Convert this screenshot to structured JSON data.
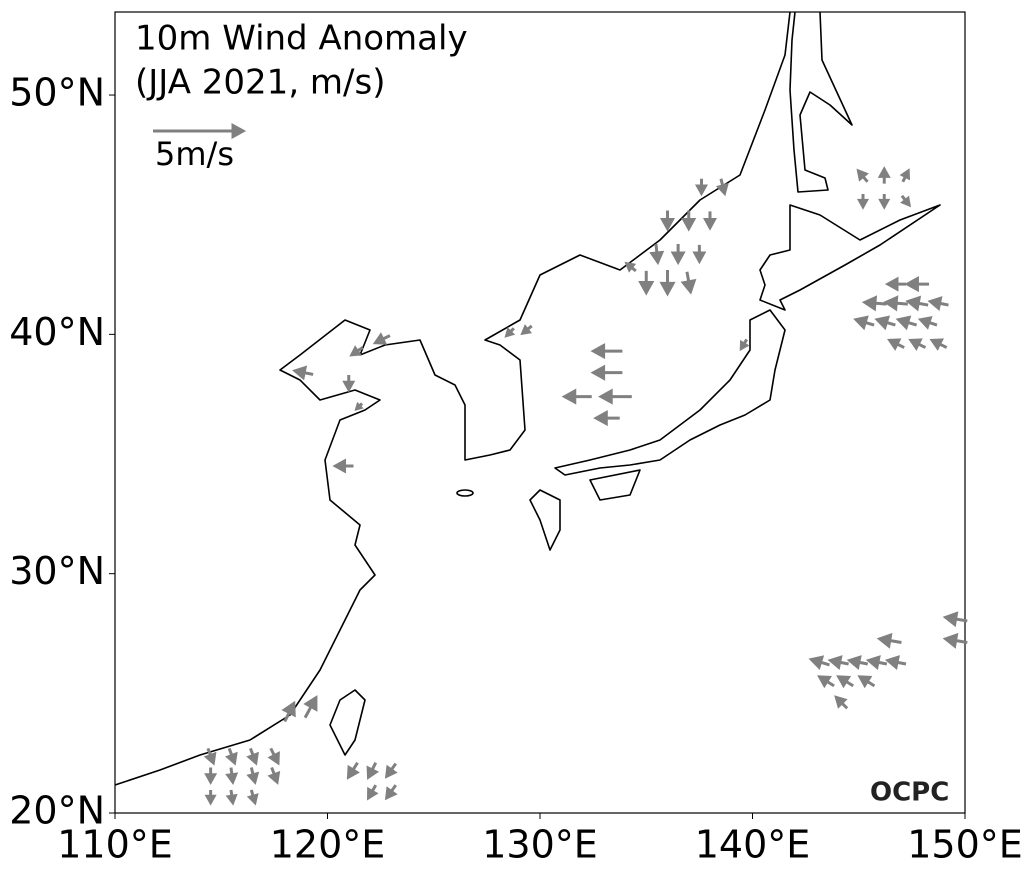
{
  "map": {
    "title": "10m Wind Anomaly",
    "subtitle": "(JJA 2021, m/s)",
    "reference_arrow": {
      "value": 5,
      "label": "5m/s"
    },
    "logo": "OCPC",
    "xlim": [
      110,
      150
    ],
    "ylim": [
      20,
      53.47
    ],
    "xticks": [
      {
        "value": 110,
        "label": "110°E"
      },
      {
        "value": 120,
        "label": "120°E"
      },
      {
        "value": 130,
        "label": "130°E"
      },
      {
        "value": 140,
        "label": "140°E"
      },
      {
        "value": 150,
        "label": "150°E"
      }
    ],
    "yticks": [
      {
        "value": 20,
        "label": "20°N"
      },
      {
        "value": 30,
        "label": "30°N"
      },
      {
        "value": 40,
        "label": "40°N"
      },
      {
        "value": 50,
        "label": "50°N"
      }
    ],
    "arrow_color": "#808080",
    "vectors": [
      {
        "lon": 145.2,
        "lat": 46.6,
        "u": -0.5,
        "v": 0.6
      },
      {
        "lon": 146.2,
        "lat": 46.6,
        "u": 0,
        "v": 0.8
      },
      {
        "lon": 147.2,
        "lat": 46.6,
        "u": 0.3,
        "v": 0.6
      },
      {
        "lon": 145.2,
        "lat": 45.6,
        "u": 0,
        "v": -0.7
      },
      {
        "lon": 146.2,
        "lat": 45.6,
        "u": 0,
        "v": -0.7
      },
      {
        "lon": 147.2,
        "lat": 45.6,
        "u": 0.4,
        "v": -0.5
      },
      {
        "lon": 137.6,
        "lat": 46.2,
        "u": 0,
        "v": -0.8
      },
      {
        "lon": 138.6,
        "lat": 46.2,
        "u": 0.2,
        "v": -0.8
      },
      {
        "lon": 136.0,
        "lat": 44.8,
        "u": 0,
        "v": -1.0
      },
      {
        "lon": 137.0,
        "lat": 44.8,
        "u": 0,
        "v": -1.0
      },
      {
        "lon": 138.0,
        "lat": 44.8,
        "u": 0,
        "v": -0.9
      },
      {
        "lon": 135.5,
        "lat": 43.4,
        "u": 0.1,
        "v": -1.0
      },
      {
        "lon": 136.5,
        "lat": 43.4,
        "u": 0,
        "v": -1.0
      },
      {
        "lon": 137.5,
        "lat": 43.4,
        "u": 0,
        "v": -0.9
      },
      {
        "lon": 135.0,
        "lat": 42.2,
        "u": 0,
        "v": -1.2
      },
      {
        "lon": 136.0,
        "lat": 42.2,
        "u": 0,
        "v": -1.3
      },
      {
        "lon": 137.0,
        "lat": 42.2,
        "u": 0.2,
        "v": -1.1
      },
      {
        "lon": 134.3,
        "lat": 42.8,
        "u": -0.5,
        "v": 0.4
      },
      {
        "lon": 146.8,
        "lat": 42.1,
        "u": -1.0,
        "v": 0
      },
      {
        "lon": 147.8,
        "lat": 42.1,
        "u": -1.2,
        "v": 0
      },
      {
        "lon": 145.8,
        "lat": 41.3,
        "u": -1.2,
        "v": 0.1
      },
      {
        "lon": 146.8,
        "lat": 41.3,
        "u": -1.2,
        "v": 0.1
      },
      {
        "lon": 147.8,
        "lat": 41.3,
        "u": -1.1,
        "v": 0.2
      },
      {
        "lon": 148.8,
        "lat": 41.3,
        "u": -1.0,
        "v": 0.2
      },
      {
        "lon": 145.3,
        "lat": 40.5,
        "u": -1.0,
        "v": 0.3
      },
      {
        "lon": 146.3,
        "lat": 40.5,
        "u": -1.0,
        "v": 0.3
      },
      {
        "lon": 147.3,
        "lat": 40.5,
        "u": -1.0,
        "v": 0.3
      },
      {
        "lon": 148.3,
        "lat": 40.5,
        "u": -0.9,
        "v": 0.3
      },
      {
        "lon": 146.8,
        "lat": 39.6,
        "u": -0.8,
        "v": 0.4
      },
      {
        "lon": 147.8,
        "lat": 39.6,
        "u": -0.8,
        "v": 0.4
      },
      {
        "lon": 148.8,
        "lat": 39.6,
        "u": -0.8,
        "v": 0.4
      },
      {
        "lon": 128.6,
        "lat": 40.1,
        "u": -0.4,
        "v": -0.4
      },
      {
        "lon": 129.4,
        "lat": 40.2,
        "u": -0.5,
        "v": -0.4
      },
      {
        "lon": 133.2,
        "lat": 39.3,
        "u": -1.6,
        "v": 0
      },
      {
        "lon": 133.2,
        "lat": 38.4,
        "u": -1.6,
        "v": 0
      },
      {
        "lon": 131.8,
        "lat": 37.4,
        "u": -1.5,
        "v": 0
      },
      {
        "lon": 133.6,
        "lat": 37.4,
        "u": -1.7,
        "v": 0
      },
      {
        "lon": 133.2,
        "lat": 36.5,
        "u": -1.3,
        "v": 0
      },
      {
        "lon": 118.9,
        "lat": 38.4,
        "u": -1.0,
        "v": 0.2
      },
      {
        "lon": 121.4,
        "lat": 39.3,
        "u": -0.6,
        "v": -0.4
      },
      {
        "lon": 122.6,
        "lat": 39.8,
        "u": -0.8,
        "v": -0.4
      },
      {
        "lon": 121.0,
        "lat": 38.0,
        "u": 0,
        "v": -0.8
      },
      {
        "lon": 121.5,
        "lat": 37.0,
        "u": -0.3,
        "v": -0.3
      },
      {
        "lon": 120.8,
        "lat": 34.5,
        "u": -1.0,
        "v": 0
      },
      {
        "lon": 139.6,
        "lat": 39.6,
        "u": -0.3,
        "v": -0.5
      },
      {
        "lon": 114.5,
        "lat": 22.4,
        "u": 0.3,
        "v": -0.8
      },
      {
        "lon": 115.5,
        "lat": 22.4,
        "u": 0.3,
        "v": -0.8
      },
      {
        "lon": 116.5,
        "lat": 22.4,
        "u": 0.3,
        "v": -0.8
      },
      {
        "lon": 117.5,
        "lat": 22.4,
        "u": 0.4,
        "v": -0.8
      },
      {
        "lon": 114.5,
        "lat": 21.6,
        "u": 0,
        "v": -0.8
      },
      {
        "lon": 115.5,
        "lat": 21.6,
        "u": 0.1,
        "v": -0.8
      },
      {
        "lon": 116.5,
        "lat": 21.6,
        "u": 0.2,
        "v": -0.8
      },
      {
        "lon": 117.5,
        "lat": 21.6,
        "u": 0.3,
        "v": -0.8
      },
      {
        "lon": 114.5,
        "lat": 20.7,
        "u": 0,
        "v": -0.7
      },
      {
        "lon": 115.5,
        "lat": 20.7,
        "u": 0.1,
        "v": -0.7
      },
      {
        "lon": 116.5,
        "lat": 20.7,
        "u": 0.2,
        "v": -0.7
      },
      {
        "lon": 118.2,
        "lat": 24.2,
        "u": 0.5,
        "v": 1.0
      },
      {
        "lon": 119.2,
        "lat": 24.4,
        "u": 0.6,
        "v": 1.1
      },
      {
        "lon": 121.2,
        "lat": 21.8,
        "u": -0.5,
        "v": -0.8
      },
      {
        "lon": 122.1,
        "lat": 21.8,
        "u": -0.4,
        "v": -0.8
      },
      {
        "lon": 123.0,
        "lat": 21.8,
        "u": -0.5,
        "v": -0.7
      },
      {
        "lon": 122.1,
        "lat": 20.9,
        "u": -0.4,
        "v": -0.7
      },
      {
        "lon": 123.0,
        "lat": 20.9,
        "u": -0.5,
        "v": -0.7
      },
      {
        "lon": 143.2,
        "lat": 26.3,
        "u": -1.0,
        "v": 0.3
      },
      {
        "lon": 144.1,
        "lat": 26.3,
        "u": -1.0,
        "v": 0.2
      },
      {
        "lon": 145.0,
        "lat": 26.3,
        "u": -1.0,
        "v": 0.2
      },
      {
        "lon": 145.9,
        "lat": 26.3,
        "u": -1.0,
        "v": 0.2
      },
      {
        "lon": 146.8,
        "lat": 26.3,
        "u": -1.0,
        "v": 0.2
      },
      {
        "lon": 143.5,
        "lat": 25.5,
        "u": -0.8,
        "v": 0.5
      },
      {
        "lon": 144.4,
        "lat": 25.5,
        "u": -0.8,
        "v": 0.5
      },
      {
        "lon": 145.4,
        "lat": 25.5,
        "u": -0.8,
        "v": 0.5
      },
      {
        "lon": 144.2,
        "lat": 24.6,
        "u": -0.6,
        "v": 0.6
      },
      {
        "lon": 146.5,
        "lat": 27.2,
        "u": -1.2,
        "v": 0.2
      },
      {
        "lon": 149.6,
        "lat": 28.1,
        "u": -1.2,
        "v": 0.2
      },
      {
        "lon": 149.6,
        "lat": 27.2,
        "u": -1.2,
        "v": 0.2
      }
    ]
  }
}
